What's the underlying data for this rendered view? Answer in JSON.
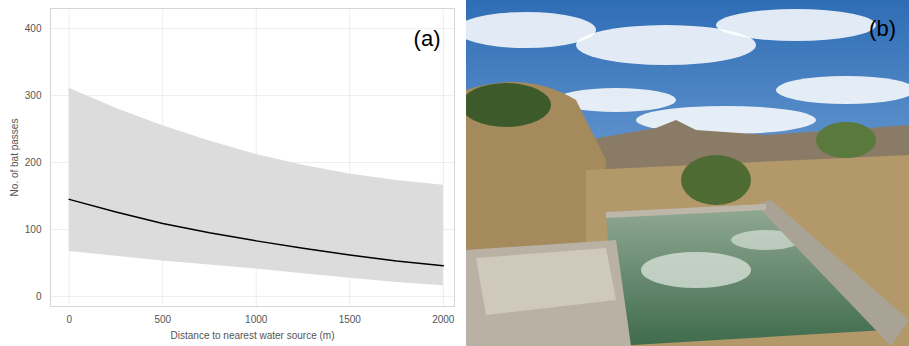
{
  "chart_data": {
    "type": "line",
    "annotations": [
      "(a)"
    ],
    "xlabel": "Distance to nearest water source (m)",
    "ylabel": "No. of bat passes",
    "x": [
      0,
      250,
      500,
      750,
      1000,
      1250,
      1500,
      1750,
      2000
    ],
    "values": [
      145,
      126,
      109,
      95,
      83,
      72,
      62,
      53,
      46
    ],
    "ci_lower": [
      67,
      60,
      53,
      47,
      41,
      34,
      27,
      21,
      16
    ],
    "ci_upper": [
      311,
      281,
      255,
      232,
      212,
      196,
      183,
      173,
      166
    ],
    "color": "#000000",
    "xlim": [
      -100,
      2060
    ],
    "ylim": [
      -15,
      430
    ],
    "xticks": [
      0,
      500,
      1000,
      1500,
      2000
    ],
    "yticks": [
      0,
      100,
      200,
      300,
      400
    ],
    "grid": true
  },
  "photo": {
    "panel_label": "(b)"
  }
}
